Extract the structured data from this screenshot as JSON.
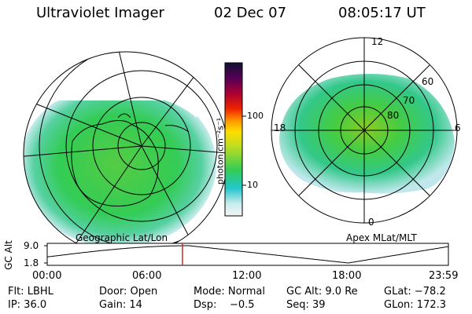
{
  "header": {
    "instrument": "Ultraviolet Imager",
    "date": "02 Dec 07",
    "time": "08:05:17 UT"
  },
  "left_map": {
    "caption": "Geographic Lat/Lon"
  },
  "right_map": {
    "caption": "Apex MLat/MLT",
    "mlt_labels": {
      "top": "12",
      "bottom": "0",
      "left": "18",
      "right": "6"
    },
    "lat_labels": [
      "60",
      "70",
      "80"
    ]
  },
  "colorbar": {
    "ticks": [
      "100",
      "10"
    ],
    "unit_label": "photon cm⁻²s⁻¹"
  },
  "altitude_plot": {
    "y_label": "GC Alt",
    "y_ticks": [
      "9.0",
      "1.8"
    ],
    "x_ticks": [
      "00:00",
      "06:00",
      "12:00",
      "18:00",
      "23:59"
    ],
    "marker_time_hours": 8.09
  },
  "info": {
    "row1": [
      "Flt: LBHL",
      "Door: Open",
      "Mode: Normal",
      "GC Alt: 9.0 Re",
      "GLat: −78.2"
    ],
    "row2": [
      "IP: 36.0",
      "Gain: 14",
      "Dsp:    −0.5",
      "Seq: 39",
      "GLon: 172.3"
    ]
  },
  "colors": {
    "marker": "#dd2222",
    "aurora_green": "#33cc55",
    "aurora_cyan": "#22cccc"
  }
}
